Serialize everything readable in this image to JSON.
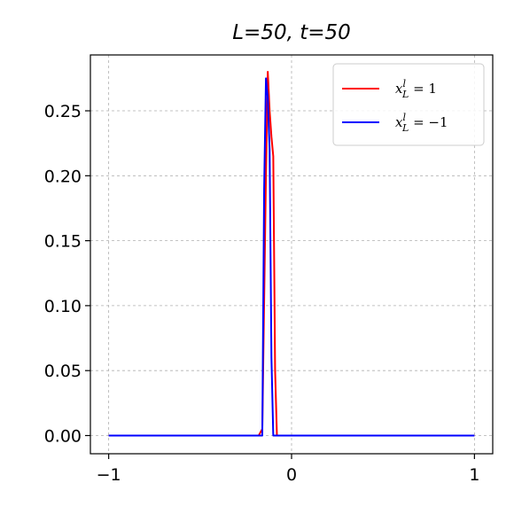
{
  "chart_data": {
    "type": "line",
    "title": "L=50, t=50",
    "xlabel": "",
    "ylabel": "",
    "xlim": [
      -1.1,
      1.1
    ],
    "ylim": [
      -0.014,
      0.293
    ],
    "xticks": [
      -1,
      0,
      1
    ],
    "xtick_labels": [
      "−1",
      "0",
      "1"
    ],
    "yticks": [
      0.0,
      0.05,
      0.1,
      0.15,
      0.2,
      0.25
    ],
    "ytick_labels": [
      "0.00",
      "0.05",
      "0.10",
      "0.15",
      "0.20",
      "0.25"
    ],
    "grid": true,
    "legend_position": "top-right",
    "series": [
      {
        "name": "x_L^l = 1",
        "legend_main": "x",
        "legend_sub": "L",
        "legend_sup": "l",
        "legend_rest": " = 1",
        "color": "#ff0000",
        "x": [
          -1.0,
          -0.2,
          -0.18,
          -0.16,
          -0.14,
          -0.13,
          -0.12,
          -0.11,
          -0.1,
          -0.09,
          -0.08,
          -0.07,
          0.0,
          1.0
        ],
        "y": [
          0.0,
          0.0,
          0.0,
          0.005,
          0.2,
          0.28,
          0.25,
          0.23,
          0.215,
          0.05,
          0.0,
          0.0,
          0.0,
          0.0
        ]
      },
      {
        "name": "x_L^l = −1",
        "legend_main": "x",
        "legend_sub": "L",
        "legend_sup": "l",
        "legend_rest": " = −1",
        "color": "#0000ff",
        "x": [
          -1.0,
          -0.2,
          -0.18,
          -0.16,
          -0.15,
          -0.14,
          -0.13,
          -0.12,
          -0.11,
          -0.1,
          -0.09,
          -0.08,
          0.0,
          1.0
        ],
        "y": [
          0.0,
          0.0,
          0.0,
          0.0,
          0.19,
          0.275,
          0.26,
          0.22,
          0.06,
          0.0,
          0.0,
          0.0,
          0.0,
          0.0
        ]
      }
    ]
  }
}
